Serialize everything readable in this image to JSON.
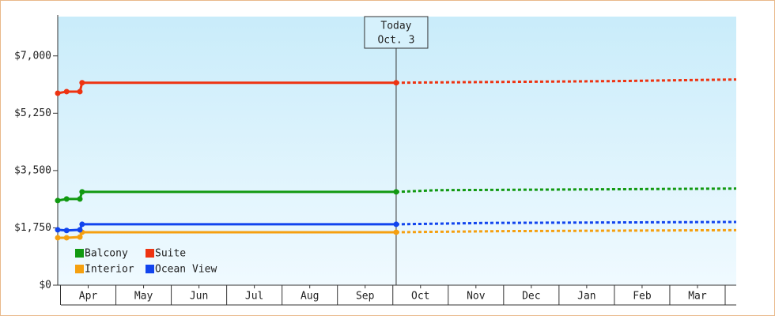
{
  "chart_data": {
    "type": "line",
    "xlim": [
      -0.55,
      11.7
    ],
    "xticks": [
      {
        "value": 0,
        "label": "Apr"
      },
      {
        "value": 1,
        "label": "May"
      },
      {
        "value": 2,
        "label": "Jun"
      },
      {
        "value": 3,
        "label": "Jul"
      },
      {
        "value": 4,
        "label": "Aug"
      },
      {
        "value": 5,
        "label": "Sep"
      },
      {
        "value": 6,
        "label": "Oct"
      },
      {
        "value": 7,
        "label": "Nov"
      },
      {
        "value": 8,
        "label": "Dec"
      },
      {
        "value": 9,
        "label": "Jan"
      },
      {
        "value": 10,
        "label": "Feb"
      },
      {
        "value": 11,
        "label": "Mar"
      }
    ],
    "ylim": [
      0,
      8200
    ],
    "yticks": [
      {
        "value": 0,
        "label": "$0"
      },
      {
        "value": 1750,
        "label": "$1,750"
      },
      {
        "value": 3500,
        "label": "$3,500"
      },
      {
        "value": 5250,
        "label": "$5,250"
      },
      {
        "value": 7000,
        "label": "$7,000"
      }
    ],
    "annotation": {
      "lines": [
        "Today",
        "Oct. 3"
      ],
      "x": 5.56
    },
    "series": [
      {
        "name": "Balcony",
        "color": "#119911",
        "history": {
          "x": [
            -0.55,
            -0.39,
            -0.15,
            -0.11,
            5.56
          ],
          "values": [
            2583,
            2631,
            2631,
            2848,
            2848
          ]
        },
        "forecast": {
          "x": [
            5.56,
            6.3,
            8.5,
            11.7
          ],
          "values": [
            2848,
            2900,
            2920,
            2950
          ]
        }
      },
      {
        "name": "Suite",
        "color": "#ee3311",
        "history": {
          "x": [
            -0.55,
            -0.39,
            -0.15,
            -0.11,
            5.56
          ],
          "values": [
            5860,
            5910,
            5910,
            6180,
            6180
          ]
        },
        "forecast": {
          "x": [
            5.56,
            6.2,
            9.5,
            11.7
          ],
          "values": [
            6180,
            6190,
            6230,
            6280
          ]
        }
      },
      {
        "name": "Interior",
        "color": "#f5a010",
        "history": {
          "x": [
            -0.55,
            -0.39,
            -0.15,
            -0.11,
            5.56
          ],
          "values": [
            1448,
            1448,
            1470,
            1617,
            1617
          ]
        },
        "forecast": {
          "x": [
            5.56,
            7.5,
            11.7
          ],
          "values": [
            1617,
            1650,
            1680
          ]
        }
      },
      {
        "name": "Ocean View",
        "color": "#1144ee",
        "history": {
          "x": [
            -0.55,
            -0.39,
            -0.15,
            -0.11,
            5.56
          ],
          "values": [
            1690,
            1670,
            1690,
            1859,
            1859
          ]
        },
        "forecast": {
          "x": [
            5.56,
            7.2,
            11.7
          ],
          "values": [
            1859,
            1900,
            1930
          ]
        }
      }
    ]
  }
}
